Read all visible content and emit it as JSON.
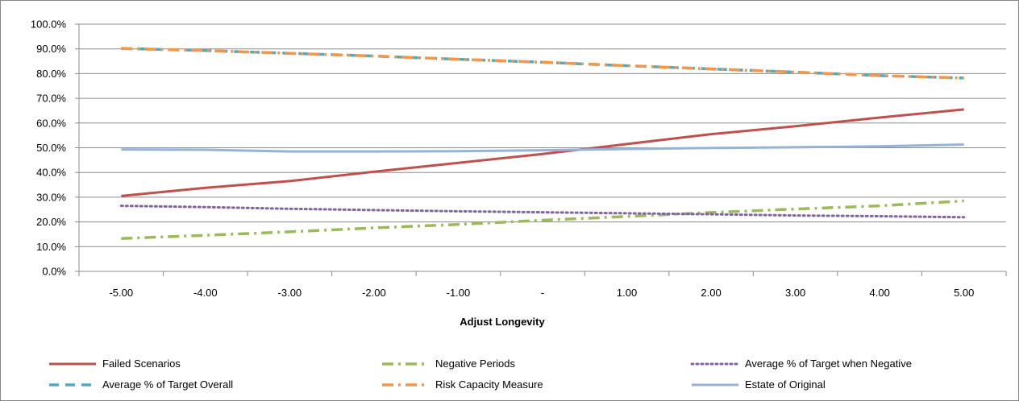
{
  "chart_data": {
    "type": "line",
    "title": "",
    "xlabel": "Adjust Longevity",
    "ylabel": "",
    "x": [
      -5,
      -4,
      -3,
      -2,
      -1,
      0,
      1,
      2,
      3,
      4,
      5
    ],
    "categories": [
      "-5.00",
      "-4.00",
      "-3.00",
      "-2.00",
      "-1.00",
      "-",
      "1.00",
      "2.00",
      "3.00",
      "4.00",
      "5.00"
    ],
    "ylim": [
      0,
      100
    ],
    "yticks": [
      "0.0%",
      "10.0%",
      "20.0%",
      "30.0%",
      "40.0%",
      "50.0%",
      "60.0%",
      "70.0%",
      "80.0%",
      "90.0%",
      "100.0%"
    ],
    "grid": true,
    "legend_position": "bottom",
    "series": [
      {
        "name": "Failed Scenarios",
        "color": "#C0504D",
        "style": "solid",
        "values": [
          30.5,
          33.8,
          36.5,
          40.3,
          43.9,
          47.5,
          51.5,
          55.5,
          58.7,
          62.2,
          65.5
        ]
      },
      {
        "name": "Negative Periods",
        "color": "#9BBB59",
        "style": "dashdot",
        "values": [
          13.3,
          14.6,
          16.0,
          17.6,
          19.0,
          20.7,
          22.2,
          23.8,
          25.2,
          26.5,
          28.5
        ]
      },
      {
        "name": "Average % of Target when Negative",
        "color": "#8064A2",
        "style": "dotted",
        "values": [
          26.5,
          26.0,
          25.3,
          24.8,
          24.3,
          23.9,
          23.5,
          23.1,
          22.6,
          22.3,
          21.9
        ]
      },
      {
        "name": "Average % of Target Overall",
        "color": "#4BACC6",
        "style": "dashed",
        "values": [
          90.2,
          89.3,
          88.2,
          87.1,
          85.8,
          84.6,
          83.2,
          81.9,
          80.6,
          79.2,
          78.2
        ]
      },
      {
        "name": "Risk Capacity Measure",
        "color": "#F79646",
        "style": "dashdot",
        "values": [
          90.2,
          89.3,
          88.2,
          87.1,
          85.8,
          84.6,
          83.2,
          81.9,
          80.6,
          79.2,
          78.2
        ]
      },
      {
        "name": "Estate of Original",
        "color": "#95B3D7",
        "style": "solid",
        "values": [
          49.3,
          49.2,
          48.5,
          48.5,
          48.6,
          49.0,
          49.5,
          49.9,
          50.2,
          50.6,
          51.3
        ]
      }
    ]
  }
}
